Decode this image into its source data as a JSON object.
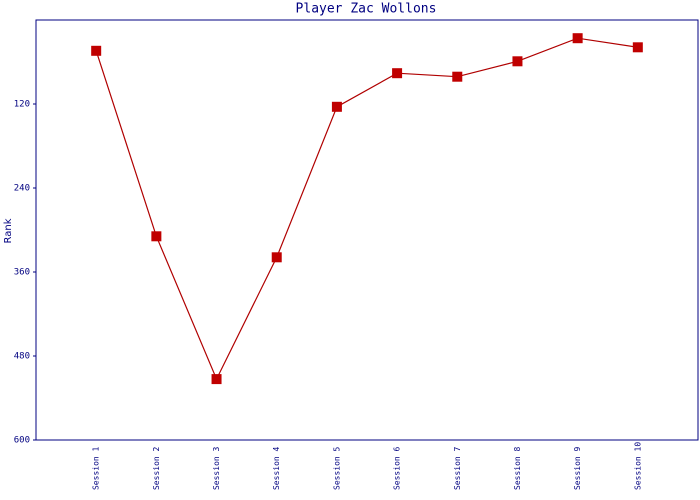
{
  "chart_data": {
    "type": "line",
    "title": "Player Zac Wollons",
    "y_label": "Rank",
    "categories": [
      "Session 1",
      "Session 2",
      "Session 3",
      "Session 4",
      "Session 5",
      "Session 6",
      "Session 7",
      "Session 8",
      "Session 9",
      "Session 10"
    ],
    "values": [
      44,
      309,
      513,
      339,
      124,
      76,
      81,
      59,
      26,
      39
    ],
    "color": "#b00000",
    "marker_color": "#c00000",
    "ylim": [
      0,
      600
    ],
    "y_inverted": true,
    "yticks": [
      120,
      240,
      360,
      480,
      600
    ]
  }
}
